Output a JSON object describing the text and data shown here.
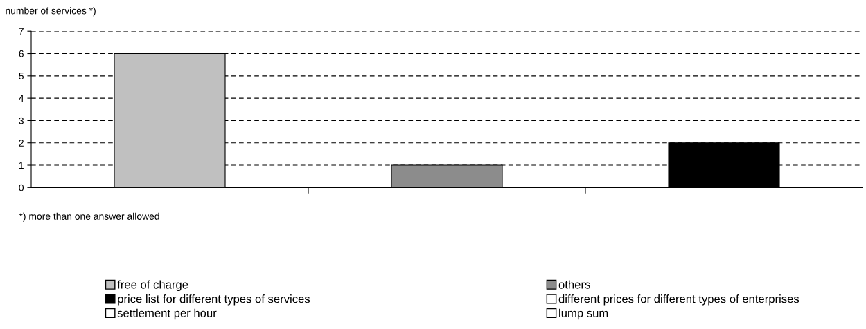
{
  "chart_data": {
    "type": "bar",
    "ylabel": "number of services *)",
    "categories": [
      null,
      null,
      null
    ],
    "series": [
      {
        "name": "free of charge",
        "color": "#c0c0c0",
        "values": [
          6,
          null,
          null
        ]
      },
      {
        "name": "others",
        "color": "#8c8c8c",
        "values": [
          null,
          1,
          null
        ]
      },
      {
        "name": "price list for different types of services",
        "color": "#000000",
        "values": [
          null,
          null,
          2
        ]
      },
      {
        "name": "different prices for different types of enterprises",
        "color": "#ffffff",
        "values": [
          null,
          null,
          null
        ]
      },
      {
        "name": "settlement per hour",
        "color": "#ffffff",
        "values": [
          null,
          null,
          null
        ]
      },
      {
        "name": "lump sum",
        "color": "#ffffff",
        "values": [
          null,
          null,
          null
        ]
      }
    ],
    "ylim": [
      0,
      7
    ],
    "yticks": [
      0,
      1,
      2,
      3,
      4,
      5,
      6,
      7
    ],
    "grid": "y",
    "legend": "bottom",
    "line_style": "dashed",
    "annotations": [
      "*) more than one answer allowed"
    ]
  }
}
